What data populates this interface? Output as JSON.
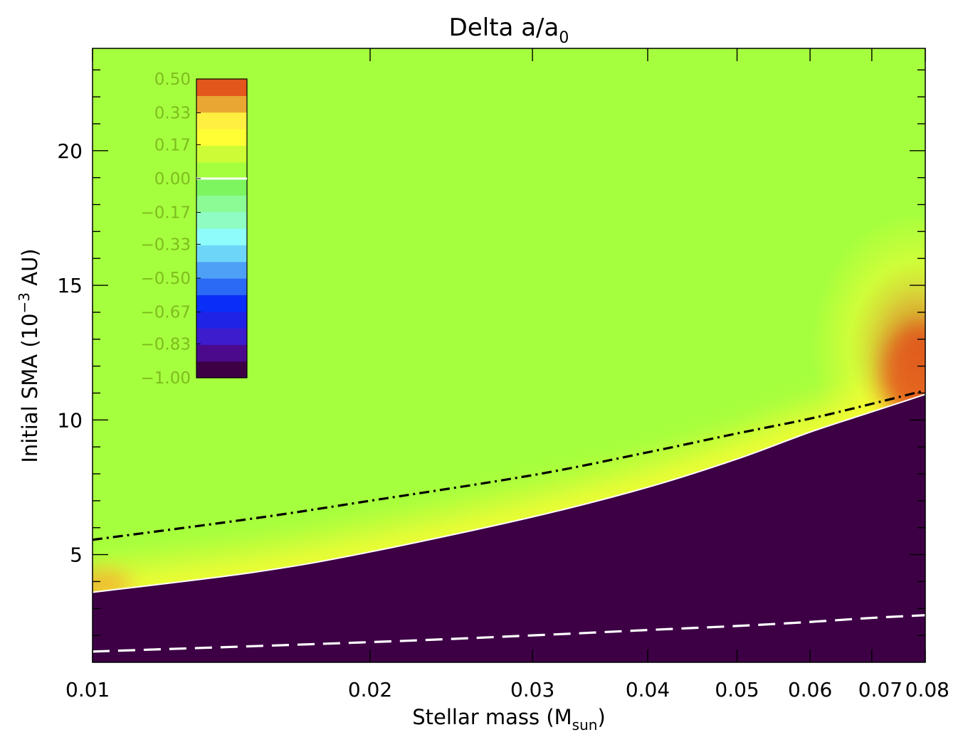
{
  "chart_data": {
    "type": "heatmap",
    "title": "Delta a/a",
    "title_subscript": "0",
    "xlabel": "Stellar mass (M",
    "xlabel_subscript": "sun",
    "xlabel_close": ")",
    "ylabel": "Initial SMA (10",
    "ylabel_superscript": "−3",
    "ylabel_close": " AU)",
    "x_scale": "log",
    "xlim": [
      0.01,
      0.08
    ],
    "ylim": [
      1,
      23.8
    ],
    "x_ticks": [
      0.01,
      0.02,
      0.03,
      0.04,
      0.05,
      0.06,
      0.07,
      0.08
    ],
    "x_tick_labels": [
      "0.01",
      "0.02",
      "0.03",
      "0.04",
      "0.05",
      "0.06",
      "0.07",
      "0.08"
    ],
    "y_ticks": [
      5,
      10,
      15,
      20
    ],
    "y_tick_labels": [
      "5",
      "10",
      "15",
      "20"
    ],
    "colorbar": {
      "placement": "top-left inside",
      "tick_labels": [
        "0.50",
        "0.33",
        "0.17",
        "0.00",
        "−0.17",
        "−0.33",
        "−0.50",
        "−0.67",
        "−0.83",
        "−1.00"
      ],
      "tick_values": [
        0.5,
        0.33,
        0.17,
        0.0,
        -0.17,
        -0.33,
        -0.5,
        -0.67,
        -0.83,
        -1.0
      ],
      "levels": [
        {
          "from": -1.0,
          "to": -0.9167,
          "color": "#3d0045"
        },
        {
          "from": -0.9167,
          "to": -0.8333,
          "color": "#4b0a8c"
        },
        {
          "from": -0.8333,
          "to": -0.75,
          "color": "#3c1ccc"
        },
        {
          "from": -0.75,
          "to": -0.6667,
          "color": "#1f23e6"
        },
        {
          "from": -0.6667,
          "to": -0.5833,
          "color": "#0a2df8"
        },
        {
          "from": -0.5833,
          "to": -0.5,
          "color": "#2a6af5"
        },
        {
          "from": -0.5,
          "to": -0.4167,
          "color": "#4da0f6"
        },
        {
          "from": -0.4167,
          "to": -0.3333,
          "color": "#6dd6f8"
        },
        {
          "from": -0.3333,
          "to": -0.25,
          "color": "#8efcfb"
        },
        {
          "from": -0.25,
          "to": -0.1667,
          "color": "#8ffcc4"
        },
        {
          "from": -0.1667,
          "to": -0.0833,
          "color": "#8cfb96"
        },
        {
          "from": -0.0833,
          "to": 0.0,
          "color": "#7cf55e"
        },
        {
          "from": 0.0,
          "to": 0.0833,
          "color": "#a6ff3e"
        },
        {
          "from": 0.0833,
          "to": 0.1667,
          "color": "#cdfc36"
        },
        {
          "from": 0.1667,
          "to": 0.25,
          "color": "#fffd33"
        },
        {
          "from": 0.25,
          "to": 0.3333,
          "color": "#ffef41"
        },
        {
          "from": 0.3333,
          "to": 0.4167,
          "color": "#e9a632"
        },
        {
          "from": 0.4167,
          "to": 0.5,
          "color": "#e3561c"
        }
      ]
    },
    "background_value_color": "#a6ff3e",
    "lost_region_color": "#3d0045",
    "lost_region_boundary": {
      "x": [
        0.01,
        0.015,
        0.02,
        0.03,
        0.04,
        0.05,
        0.06,
        0.07,
        0.08
      ],
      "y": [
        3.6,
        4.35,
        5.1,
        6.4,
        7.5,
        8.55,
        9.55,
        10.3,
        10.95
      ]
    },
    "series": [
      {
        "style": "dash-dot",
        "color": "#000000",
        "x": [
          0.01,
          0.015,
          0.02,
          0.03,
          0.04,
          0.05,
          0.06,
          0.07,
          0.08
        ],
        "y": [
          5.55,
          6.35,
          7.0,
          7.95,
          8.8,
          9.5,
          10.05,
          10.6,
          11.1
        ]
      },
      {
        "style": "dashed",
        "color": "#ffffff",
        "x": [
          0.01,
          0.02,
          0.03,
          0.04,
          0.05,
          0.06,
          0.07,
          0.08
        ],
        "y": [
          1.4,
          1.75,
          2.0,
          2.2,
          2.35,
          2.5,
          2.65,
          2.75
        ]
      }
    ],
    "highlight_band": {
      "description_values": "positive Δa/a0 up to 0.50 just above the boundary, strongest near the highest mass"
    },
    "grid": false
  }
}
